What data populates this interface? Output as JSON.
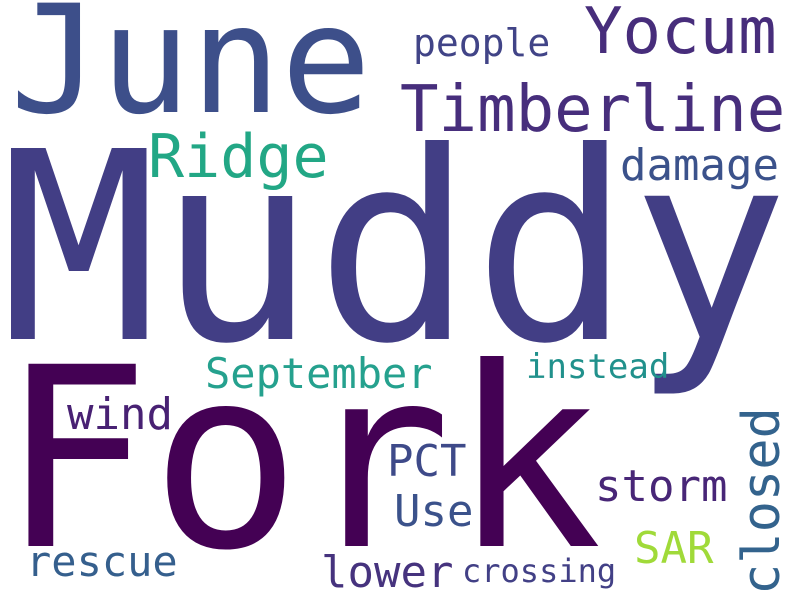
{
  "words": [
    {
      "id": "muddy",
      "text": "Muddy",
      "color": "#423e85"
    },
    {
      "id": "fork",
      "text": "Fork",
      "color": "#440154"
    },
    {
      "id": "june",
      "text": "June",
      "color": "#3d4f8a"
    },
    {
      "id": "timberline",
      "text": "Timberline",
      "color": "#472e7c"
    },
    {
      "id": "yocum",
      "text": "Yocum",
      "color": "#472d7b"
    },
    {
      "id": "people",
      "text": "people",
      "color": "#414487"
    },
    {
      "id": "ridge",
      "text": "Ridge",
      "color": "#22a785"
    },
    {
      "id": "damage",
      "text": "damage",
      "color": "#3b528b"
    },
    {
      "id": "september",
      "text": "September",
      "color": "#25a18e"
    },
    {
      "id": "instead",
      "text": "instead",
      "color": "#21918c"
    },
    {
      "id": "closed",
      "text": "closed",
      "color": "#33638d"
    },
    {
      "id": "wind",
      "text": "wind",
      "color": "#482173"
    },
    {
      "id": "pct",
      "text": "PCT",
      "color": "#3e4a89"
    },
    {
      "id": "storm",
      "text": "storm",
      "color": "#482677"
    },
    {
      "id": "use",
      "text": "Use",
      "color": "#3b528b"
    },
    {
      "id": "sar",
      "text": "SAR",
      "color": "#a0da39"
    },
    {
      "id": "rescue",
      "text": "rescue",
      "color": "#355f8d"
    },
    {
      "id": "lower",
      "text": "lower",
      "color": "#46337e"
    },
    {
      "id": "crossing",
      "text": "crossing",
      "color": "#424086"
    }
  ]
}
